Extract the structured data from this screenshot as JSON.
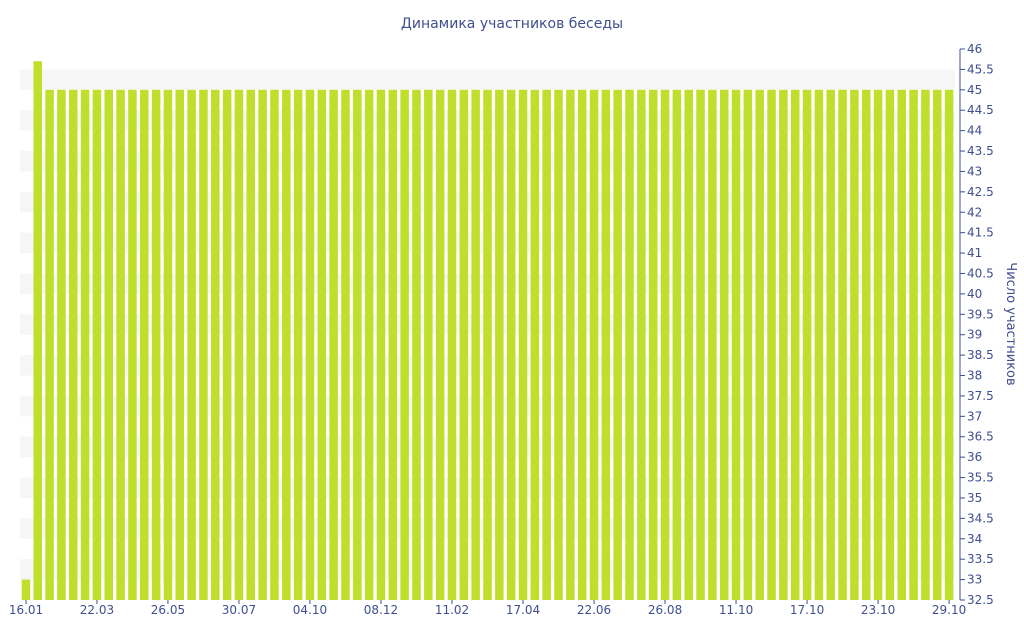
{
  "chart_data": {
    "type": "bar",
    "title": "Динамика участников беседы",
    "xlabel": "",
    "ylabel": "Число участников",
    "ylim": [
      32.5,
      46
    ],
    "y_ticks": [
      "32.5",
      "33",
      "33.5",
      "34",
      "34.5",
      "35",
      "35.5",
      "36",
      "36.5",
      "37",
      "37.5",
      "38",
      "38.5",
      "39",
      "39.5",
      "40",
      "40.5",
      "41",
      "41.5",
      "42",
      "42.5",
      "43",
      "43.5",
      "44",
      "44.5",
      "45",
      "45.5",
      "46"
    ],
    "x_ticks": [
      "16.01",
      "22.03",
      "26.05",
      "30.07",
      "04.10",
      "08.12",
      "11.02",
      "17.04",
      "22.06",
      "26.08",
      "11.10",
      "17.10",
      "23.10",
      "29.10"
    ],
    "x_tick_bar_index": [
      0,
      6,
      12,
      18,
      24,
      30,
      36,
      42,
      48,
      54,
      60,
      66,
      72,
      78
    ],
    "values": [
      33,
      45.7,
      45,
      45,
      45,
      45,
      45,
      45,
      45,
      45,
      45,
      45,
      45,
      45,
      45,
      45,
      45,
      45,
      45,
      45,
      45,
      45,
      45,
      45,
      45,
      45,
      45,
      45,
      45,
      45,
      45,
      45,
      45,
      45,
      45,
      45,
      45,
      45,
      45,
      45,
      45,
      45,
      45,
      45,
      45,
      45,
      45,
      45,
      45,
      45,
      45,
      45,
      45,
      45,
      45,
      45,
      45,
      45,
      45,
      45,
      45,
      45,
      45,
      45,
      45,
      45,
      45,
      45,
      45,
      45,
      45,
      45,
      45,
      45,
      45,
      45,
      45,
      45,
      45
    ],
    "colors": {
      "bar": "#c0df2c",
      "text": "#3f4f8f",
      "band": "#f6f6f6",
      "axis": "#3f4f8f"
    },
    "grid": "alternating bands",
    "y_axis_side": "right"
  }
}
